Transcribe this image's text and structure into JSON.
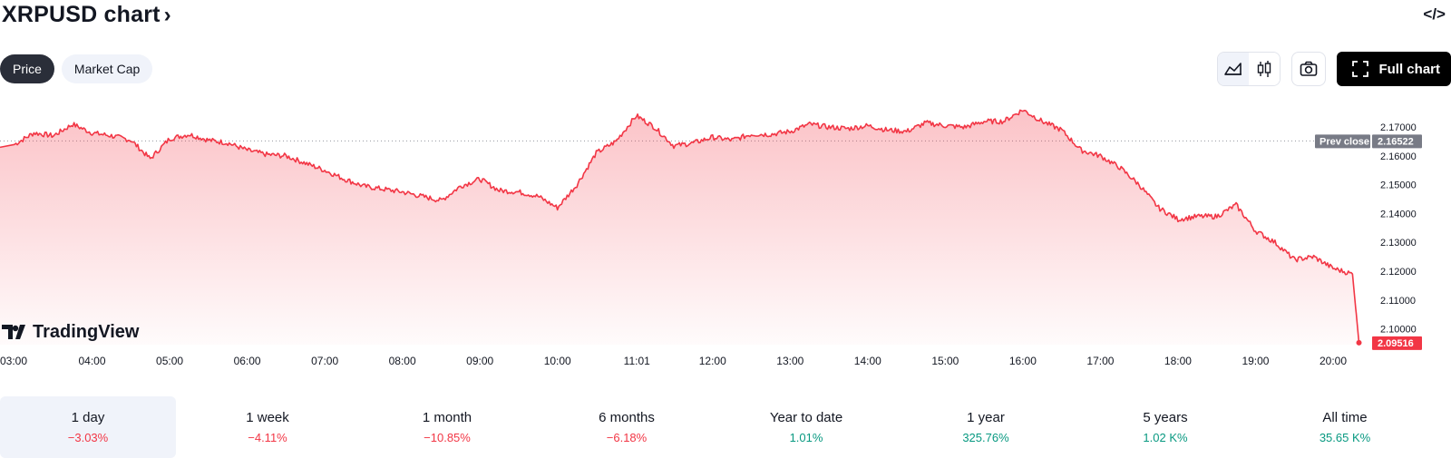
{
  "header": {
    "title": "XRPUSD chart",
    "title_chevron": "›",
    "embed_label": "</>"
  },
  "tabs": [
    {
      "label": "Price",
      "active": true
    },
    {
      "label": "Market Cap",
      "active": false
    }
  ],
  "toolbar": {
    "area_icon": "area-chart-icon",
    "candle_icon": "candlestick-icon",
    "camera_icon": "camera-icon",
    "fullscreen_icon": "fullscreen-icon",
    "full_chart_label": "Full chart"
  },
  "watermark": {
    "text": "TradingView"
  },
  "colors": {
    "line": "#f23645",
    "fill": "#f23645",
    "prev_close_badge": "#787b86",
    "last_badge": "#f23645",
    "positive": "#089981",
    "negative": "#f23645"
  },
  "chart_data": {
    "type": "area",
    "x": [
      "03:00",
      "03:15",
      "03:30",
      "03:45",
      "04:00",
      "04:15",
      "04:30",
      "04:45",
      "05:00",
      "05:15",
      "05:30",
      "05:45",
      "06:00",
      "06:15",
      "06:30",
      "06:45",
      "07:00",
      "07:15",
      "07:30",
      "07:45",
      "08:00",
      "08:15",
      "08:30",
      "08:45",
      "09:00",
      "09:15",
      "09:30",
      "09:45",
      "10:00",
      "10:15",
      "10:30",
      "10:45",
      "11:01",
      "11:15",
      "11:30",
      "11:45",
      "12:00",
      "12:15",
      "12:30",
      "12:45",
      "13:00",
      "13:15",
      "13:30",
      "13:45",
      "14:00",
      "14:15",
      "14:30",
      "14:45",
      "15:00",
      "15:15",
      "15:30",
      "15:45",
      "16:00",
      "16:15",
      "16:30",
      "16:45",
      "17:00",
      "17:15",
      "17:30",
      "17:45",
      "18:00",
      "18:15",
      "18:30",
      "18:45",
      "19:00",
      "19:15",
      "19:30",
      "19:45",
      "20:00",
      "20:15",
      "20:20"
    ],
    "y": [
      2.164,
      2.168,
      2.167,
      2.171,
      2.168,
      2.167,
      2.1655,
      2.159,
      2.166,
      2.1675,
      2.1655,
      2.1645,
      2.162,
      2.1605,
      2.16,
      2.1575,
      2.155,
      2.152,
      2.1495,
      2.1485,
      2.1475,
      2.146,
      2.1445,
      2.1495,
      2.152,
      2.148,
      2.1475,
      2.146,
      2.142,
      2.15,
      2.161,
      2.165,
      2.174,
      2.17,
      2.1635,
      2.1645,
      2.1665,
      2.1655,
      2.1675,
      2.1675,
      2.1685,
      2.171,
      2.17,
      2.1695,
      2.1705,
      2.169,
      2.1685,
      2.1715,
      2.1705,
      2.17,
      2.172,
      2.172,
      2.176,
      2.172,
      2.169,
      2.162,
      2.16,
      2.156,
      2.15,
      2.142,
      2.138,
      2.139,
      2.139,
      2.143,
      2.134,
      2.13,
      2.124,
      2.125,
      2.121,
      2.119,
      2.09516
    ],
    "prev_close": 2.16522,
    "last_value": 2.09516,
    "prev_close_label": "Prev close",
    "prev_close_text": "2.16522",
    "last_text": "2.09516",
    "ylim": [
      2.0945,
      2.1795
    ],
    "y_ticks": [
      "2.17000",
      "2.16000",
      "2.15000",
      "2.14000",
      "2.13000",
      "2.12000",
      "2.11000",
      "2.10000"
    ],
    "y_tick_values": [
      2.17,
      2.16,
      2.15,
      2.14,
      2.13,
      2.12,
      2.11,
      2.1
    ],
    "x_ticks": [
      {
        "label": "03:00",
        "t": 0
      },
      {
        "label": "04:00",
        "t": 1
      },
      {
        "label": "05:00",
        "t": 2
      },
      {
        "label": "06:00",
        "t": 3
      },
      {
        "label": "07:00",
        "t": 4
      },
      {
        "label": "08:00",
        "t": 5
      },
      {
        "label": "09:00",
        "t": 6
      },
      {
        "label": "10:00",
        "t": 7
      },
      {
        "label": "11:01",
        "t": 8
      },
      {
        "label": "12:00",
        "t": 9
      },
      {
        "label": "13:00",
        "t": 10
      },
      {
        "label": "14:00",
        "t": 11
      },
      {
        "label": "15:00",
        "t": 12
      },
      {
        "label": "16:00",
        "t": 13
      },
      {
        "label": "17:00",
        "t": 14
      },
      {
        "label": "18:00",
        "t": 15
      },
      {
        "label": "19:00",
        "t": 16
      },
      {
        "label": "20:00",
        "t": 17
      }
    ],
    "grid": false
  },
  "periods": [
    {
      "label": "1 day",
      "value": "−3.03%",
      "sign": "neg",
      "active": true
    },
    {
      "label": "1 week",
      "value": "−4.11%",
      "sign": "neg",
      "active": false
    },
    {
      "label": "1 month",
      "value": "−10.85%",
      "sign": "neg",
      "active": false
    },
    {
      "label": "6 months",
      "value": "−6.18%",
      "sign": "neg",
      "active": false
    },
    {
      "label": "Year to date",
      "value": "1.01%",
      "sign": "pos",
      "active": false
    },
    {
      "label": "1 year",
      "value": "325.76%",
      "sign": "pos",
      "active": false
    },
    {
      "label": "5 years",
      "value": "1.02 K%",
      "sign": "pos",
      "active": false
    },
    {
      "label": "All time",
      "value": "35.65 K%",
      "sign": "pos",
      "active": false
    }
  ]
}
